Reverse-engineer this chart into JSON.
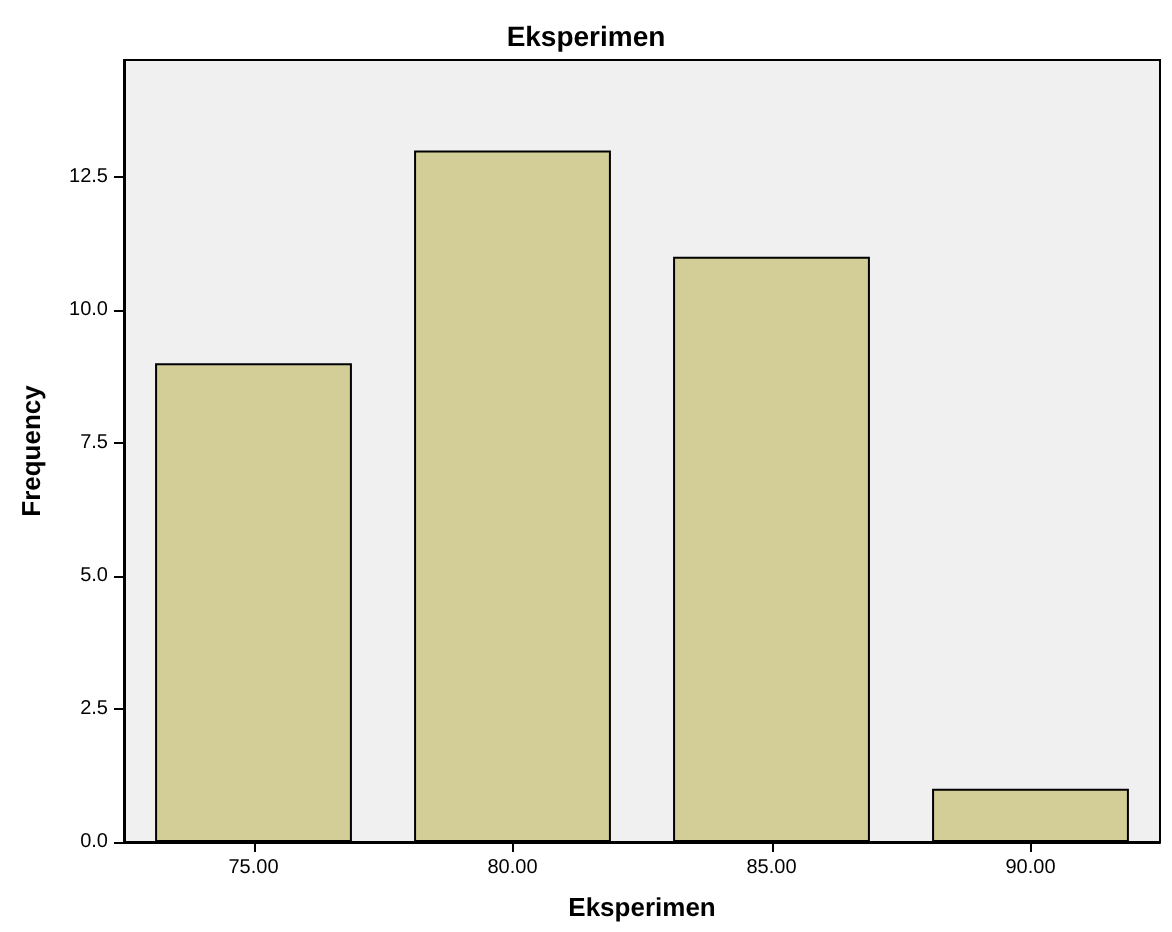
{
  "chart_data": {
    "type": "bar",
    "title": "Eksperimen",
    "xlabel": "Eksperimen",
    "ylabel": "Frequency",
    "categories": [
      "75.00",
      "80.00",
      "85.00",
      "90.00"
    ],
    "values": [
      9,
      13,
      11,
      1
    ],
    "color": "#d3ce97",
    "ylim": [
      0,
      14.7
    ],
    "yticks": [
      {
        "value": 0,
        "label": "0.0"
      },
      {
        "value": 2.5,
        "label": "2.5"
      },
      {
        "value": 5,
        "label": "5.0"
      },
      {
        "value": 7.5,
        "label": "7.5"
      },
      {
        "value": 10,
        "label": "10.0"
      },
      {
        "value": 12.5,
        "label": "12.5"
      }
    ],
    "grid": false
  }
}
